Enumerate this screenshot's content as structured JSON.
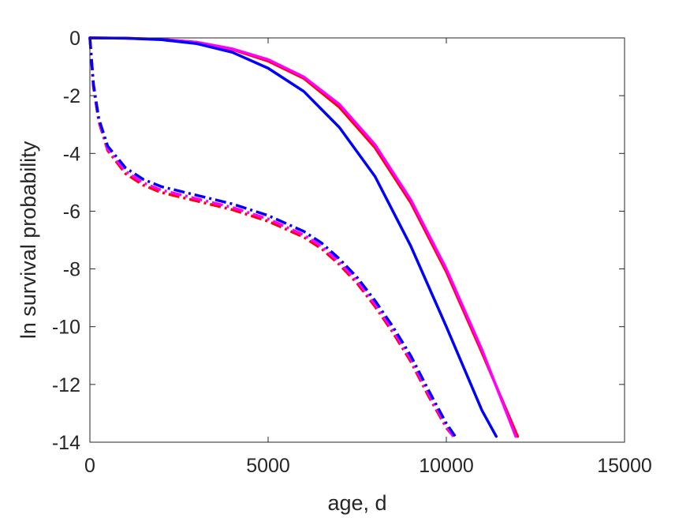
{
  "chart_data": {
    "type": "line",
    "xlabel": "age, d",
    "ylabel": "ln survival probability",
    "xlim": [
      0,
      15000
    ],
    "ylim": [
      -14,
      0
    ],
    "xticks": [
      0,
      5000,
      10000,
      15000
    ],
    "yticks": [
      0,
      -2,
      -4,
      -6,
      -8,
      -10,
      -12,
      -14
    ],
    "grid": false,
    "legend": "none",
    "series": [
      {
        "color": "#ff0000",
        "style": "solid",
        "x": [
          0,
          1000,
          2000,
          3000,
          4000,
          5000,
          6000,
          7000,
          8000,
          9000,
          10000,
          11000,
          12000
        ],
        "y": [
          0,
          -0.01,
          -0.05,
          -0.15,
          -0.4,
          -0.8,
          -1.4,
          -2.4,
          -3.8,
          -5.7,
          -8.1,
          -10.9,
          -13.8
        ]
      },
      {
        "color": "#ff00ff",
        "style": "solid",
        "x": [
          0,
          1000,
          2000,
          3000,
          4000,
          5000,
          6000,
          7000,
          8000,
          9000,
          10000,
          11000,
          11950
        ],
        "y": [
          0,
          -0.01,
          -0.05,
          -0.15,
          -0.38,
          -0.75,
          -1.35,
          -2.3,
          -3.7,
          -5.6,
          -8.0,
          -10.8,
          -13.8
        ]
      },
      {
        "color": "#0000ff",
        "style": "solid",
        "x": [
          0,
          1000,
          2000,
          3000,
          4000,
          5000,
          6000,
          7000,
          8000,
          9000,
          10000,
          11000,
          11400
        ],
        "y": [
          0,
          -0.01,
          -0.06,
          -0.2,
          -0.5,
          -1.05,
          -1.85,
          -3.1,
          -4.8,
          -7.2,
          -10.0,
          -12.9,
          -13.8
        ]
      },
      {
        "color": "#ff0000",
        "style": "dashdot",
        "x": [
          0,
          100,
          250,
          500,
          1000,
          1500,
          2000,
          3000,
          4000,
          5000,
          6000,
          6500,
          7000,
          7500,
          8000,
          8500,
          9000,
          9500,
          10000,
          10200
        ],
        "y": [
          0,
          -1.7,
          -2.9,
          -3.9,
          -4.7,
          -5.1,
          -5.35,
          -5.65,
          -5.95,
          -6.35,
          -6.9,
          -7.3,
          -7.85,
          -8.5,
          -9.3,
          -10.2,
          -11.2,
          -12.4,
          -13.5,
          -13.8
        ]
      },
      {
        "color": "#ff00ff",
        "style": "dashdot",
        "x": [
          0,
          100,
          250,
          500,
          1000,
          1500,
          2000,
          3000,
          4000,
          5000,
          6000,
          6500,
          7000,
          7500,
          8000,
          8500,
          9000,
          9500,
          10000,
          10200
        ],
        "y": [
          0,
          -1.65,
          -2.85,
          -3.85,
          -4.62,
          -5.02,
          -5.27,
          -5.57,
          -5.87,
          -6.27,
          -6.82,
          -7.22,
          -7.77,
          -8.42,
          -9.22,
          -10.12,
          -11.12,
          -12.32,
          -13.45,
          -13.8
        ]
      },
      {
        "color": "#0000ff",
        "style": "dashdot",
        "x": [
          0,
          100,
          250,
          500,
          1000,
          1500,
          2000,
          3000,
          4000,
          5000,
          6000,
          6500,
          7000,
          7500,
          8000,
          8500,
          9000,
          9500,
          10000,
          10250
        ],
        "y": [
          0,
          -1.6,
          -2.8,
          -3.75,
          -4.5,
          -4.9,
          -5.15,
          -5.45,
          -5.75,
          -6.15,
          -6.7,
          -7.1,
          -7.65,
          -8.3,
          -9.1,
          -10.0,
          -11.0,
          -12.2,
          -13.35,
          -13.8
        ]
      }
    ]
  }
}
